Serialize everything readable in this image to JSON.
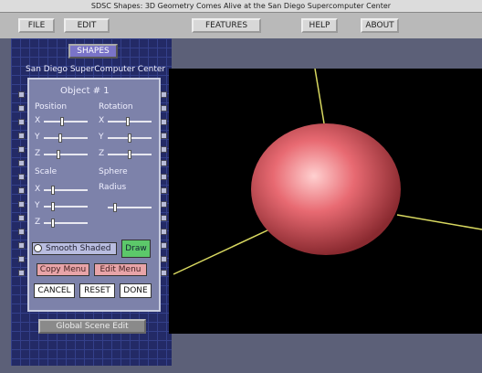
{
  "window": {
    "title": "SDSC Shapes: 3D Geometry Comes Alive at the San Diego Supercomputer Center"
  },
  "menu": [
    "FILE",
    "EDIT",
    "FEATURES",
    "HELP",
    "ABOUT"
  ],
  "sidebar": {
    "button": "SHAPES",
    "caption": "San Diego SuperComputer Center"
  },
  "panel": {
    "title": "Object # 1",
    "position": {
      "label": "Position",
      "axes": [
        "X",
        "Y",
        "Z"
      ]
    },
    "rotation": {
      "label": "Rotation",
      "axes": [
        "X",
        "Y",
        "Z"
      ]
    },
    "scale": {
      "label": "Scale",
      "axes": [
        "X",
        "Y",
        "Z"
      ]
    },
    "shape": {
      "label": "Sphere",
      "param": "Radius"
    },
    "toggle": "Smooth Shaded",
    "draw": "Draw",
    "copy": "Copy Menu",
    "edit": "Edit Menu",
    "buttons": [
      "CANCEL",
      "RESET",
      "DONE"
    ]
  },
  "global": "Global Scene Edit"
}
